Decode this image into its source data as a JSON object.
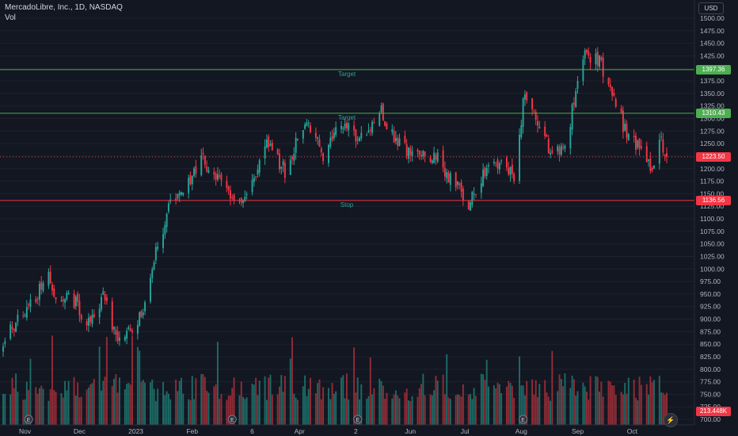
{
  "header": {
    "title": "MercadoLibre, Inc., 1D, NASDAQ",
    "volume_label": "Vol",
    "currency": "USD"
  },
  "colors": {
    "background": "#131722",
    "up": "#26a69a",
    "down": "#f23645",
    "up_volume": "#1f7a72",
    "down_volume": "#a9303a",
    "target_line": "#4caf50",
    "stop_line": "#f23645",
    "grid": "#1e222d",
    "text": "#b2b5be"
  },
  "price_axis": {
    "ticks": [
      "1500.00",
      "1475.00",
      "1450.00",
      "1425.00",
      "1400.00",
      "1375.00",
      "1350.00",
      "1325.00",
      "1300.00",
      "1275.00",
      "1250.00",
      "1225.00",
      "1200.00",
      "1175.00",
      "1150.00",
      "1125.00",
      "1100.00",
      "1075.00",
      "1050.00",
      "1025.00",
      "1000.00",
      "975.00",
      "950.00",
      "925.00",
      "900.00",
      "875.00",
      "850.00",
      "825.00",
      "800.00",
      "775.00",
      "750.00",
      "725.00",
      "700.00"
    ]
  },
  "time_axis": {
    "labels": [
      "Nov",
      "Dec",
      "2023",
      "Feb",
      "6",
      "Apr",
      "2",
      "Jun",
      "Jul",
      "Aug",
      "Sep",
      "Oct"
    ]
  },
  "levels": [
    {
      "name": "Target",
      "value": 1397.36,
      "tag": "1397.36",
      "kind": "target"
    },
    {
      "name": "Target",
      "value": 1310.43,
      "tag": "1310.43",
      "kind": "target"
    },
    {
      "name": "Stop",
      "value": 1136.56,
      "tag": "1136.56",
      "kind": "stop"
    }
  ],
  "last_price": {
    "value": 1223.5,
    "tag": "1223.50"
  },
  "last_volume": {
    "tag": "213.448K"
  },
  "chart_data": {
    "type": "candlestick",
    "title": "MercadoLibre, Inc., 1D, NASDAQ",
    "ylim": [
      700,
      1500
    ],
    "x_labels": [
      "Nov",
      "Dec",
      "2023",
      "Feb",
      "6",
      "Apr",
      "2",
      "Jun",
      "Jul",
      "Aug",
      "Sep",
      "Oct"
    ],
    "close_anchors": [
      {
        "date": "2022-10-20",
        "close": 860
      },
      {
        "date": "2022-10-28",
        "close": 900
      },
      {
        "date": "2022-11-07",
        "close": 945
      },
      {
        "date": "2022-11-14",
        "close": 990
      },
      {
        "date": "2022-11-18",
        "close": 930
      },
      {
        "date": "2022-11-25",
        "close": 955
      },
      {
        "date": "2022-12-05",
        "close": 895
      },
      {
        "date": "2022-12-14",
        "close": 945
      },
      {
        "date": "2022-12-23",
        "close": 850
      },
      {
        "date": "2023-01-04",
        "close": 910
      },
      {
        "date": "2023-01-12",
        "close": 1030
      },
      {
        "date": "2023-01-20",
        "close": 1130
      },
      {
        "date": "2023-01-30",
        "close": 1170
      },
      {
        "date": "2023-02-06",
        "close": 1220
      },
      {
        "date": "2023-02-15",
        "close": 1180
      },
      {
        "date": "2023-02-24",
        "close": 1130
      },
      {
        "date": "2023-03-06",
        "close": 1165
      },
      {
        "date": "2023-03-14",
        "close": 1250
      },
      {
        "date": "2023-03-24",
        "close": 1195
      },
      {
        "date": "2023-04-04",
        "close": 1300
      },
      {
        "date": "2023-04-14",
        "close": 1230
      },
      {
        "date": "2023-04-25",
        "close": 1290
      },
      {
        "date": "2023-05-04",
        "close": 1250
      },
      {
        "date": "2023-05-15",
        "close": 1320
      },
      {
        "date": "2023-05-24",
        "close": 1260
      },
      {
        "date": "2023-06-05",
        "close": 1220
      },
      {
        "date": "2023-06-15",
        "close": 1230
      },
      {
        "date": "2023-06-23",
        "close": 1180
      },
      {
        "date": "2023-07-03",
        "close": 1130
      },
      {
        "date": "2023-07-12",
        "close": 1190
      },
      {
        "date": "2023-07-21",
        "close": 1210
      },
      {
        "date": "2023-07-28",
        "close": 1185
      },
      {
        "date": "2023-08-03",
        "close": 1360
      },
      {
        "date": "2023-08-10",
        "close": 1285
      },
      {
        "date": "2023-08-18",
        "close": 1230
      },
      {
        "date": "2023-08-25",
        "close": 1245
      },
      {
        "date": "2023-08-31",
        "close": 1350
      },
      {
        "date": "2023-09-05",
        "close": 1430
      },
      {
        "date": "2023-09-13",
        "close": 1415
      },
      {
        "date": "2023-09-21",
        "close": 1340
      },
      {
        "date": "2023-09-28",
        "close": 1265
      },
      {
        "date": "2023-10-06",
        "close": 1240
      },
      {
        "date": "2023-10-12",
        "close": 1200
      },
      {
        "date": "2023-10-16",
        "close": 1260
      },
      {
        "date": "2023-10-20",
        "close": 1223.5
      }
    ],
    "volume_unit": "K"
  }
}
